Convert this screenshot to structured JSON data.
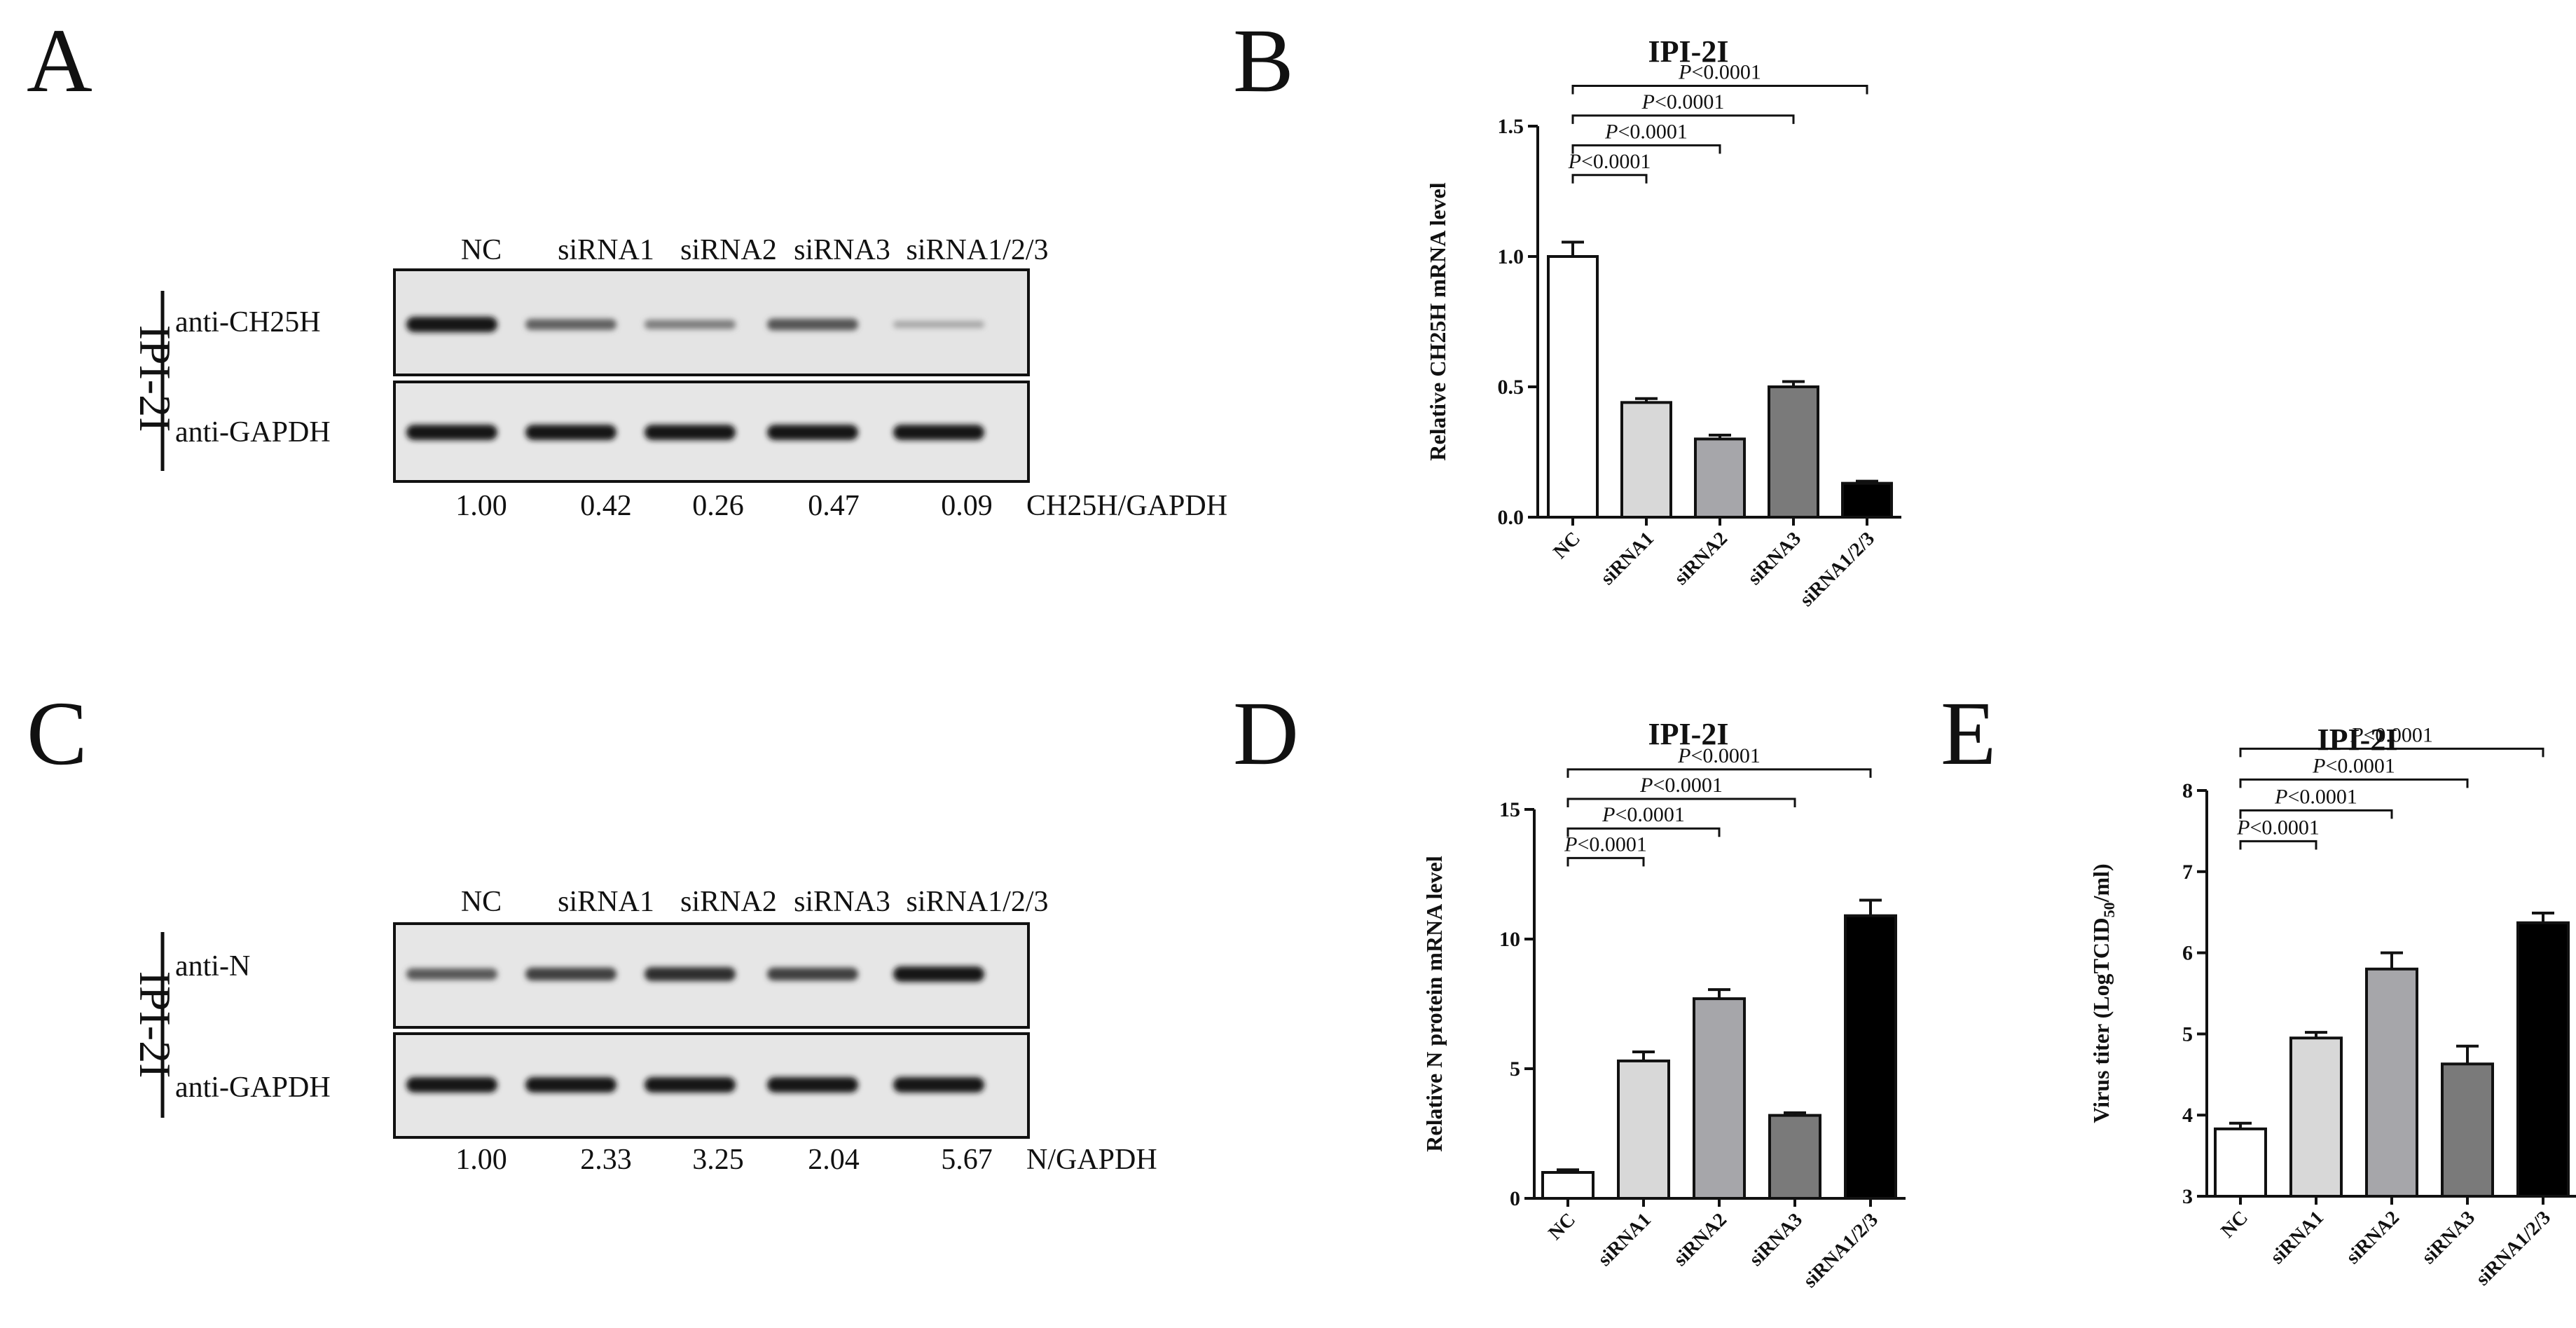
{
  "panel_letters": {
    "A": "A",
    "B": "B",
    "C": "C",
    "D": "D",
    "E": "E"
  },
  "blots": [
    {
      "letter": "A",
      "cell_line": "IPI-2I",
      "lanes": [
        "NC",
        "siRNA1",
        "siRNA2",
        "siRNA3",
        "siRNA1/2/3"
      ],
      "rows": [
        {
          "label": "anti-CH25H",
          "intensities": [
            1.0,
            0.55,
            0.38,
            0.62,
            0.15
          ]
        },
        {
          "label": "anti-GAPDH",
          "intensities": [
            1.0,
            1.0,
            1.0,
            1.0,
            1.0
          ]
        }
      ],
      "ratios": [
        "1.00",
        "0.42",
        "0.26",
        "0.47",
        "0.09"
      ],
      "ratio_label": "CH25H/GAPDH"
    },
    {
      "letter": "C",
      "cell_line": "IPI-2I",
      "lanes": [
        "NC",
        "siRNA1",
        "siRNA2",
        "siRNA3",
        "siRNA1/2/3"
      ],
      "rows": [
        {
          "label": "anti-N",
          "intensities": [
            0.6,
            0.75,
            0.85,
            0.75,
            1.0
          ]
        },
        {
          "label": "anti-GAPDH",
          "intensities": [
            1.0,
            1.0,
            1.0,
            1.0,
            1.0
          ]
        }
      ],
      "ratios": [
        "1.00",
        "2.33",
        "3.25",
        "2.04",
        "5.67"
      ],
      "ratio_label": "N/GAPDH"
    }
  ],
  "chart_data": [
    {
      "letter": "B",
      "type": "bar",
      "title": "IPI-2I",
      "ylabel": "Relative CH25H mRNA level",
      "categories": [
        "NC",
        "siRNA1",
        "siRNA2",
        "siRNA3",
        "siRNA1/2/3"
      ],
      "values": [
        1.0,
        0.44,
        0.3,
        0.5,
        0.13
      ],
      "errors": [
        0.055,
        0.015,
        0.015,
        0.02,
        0.008
      ],
      "ylim": [
        0,
        1.5
      ],
      "yticks": [
        "0.0",
        "0.5",
        "1.0",
        "1.5"
      ],
      "ytick_values": [
        0,
        0.5,
        1.0,
        1.5
      ],
      "colors": [
        "#ffffff",
        "#d8d8d8",
        "#a6a6aa",
        "#7a7a7a",
        "#000000"
      ],
      "significance": [
        {
          "from": 0,
          "to": 1,
          "p_label": "P",
          "p_value": "<0.0001"
        },
        {
          "from": 0,
          "to": 2,
          "p_label": "P",
          "p_value": "<0.0001"
        },
        {
          "from": 0,
          "to": 3,
          "p_label": "P",
          "p_value": "<0.0001"
        },
        {
          "from": 0,
          "to": 4,
          "p_label": "P",
          "p_value": "<0.0001"
        }
      ]
    },
    {
      "letter": "D",
      "type": "bar",
      "title": "IPI-2I",
      "ylabel": "Relative N protein mRNA level",
      "categories": [
        "NC",
        "siRNA1",
        "siRNA2",
        "siRNA3",
        "siRNA1/2/3"
      ],
      "values": [
        1.0,
        5.3,
        7.7,
        3.2,
        10.9
      ],
      "errors": [
        0.1,
        0.35,
        0.35,
        0.1,
        0.6
      ],
      "ylim": [
        0,
        15
      ],
      "yticks": [
        "0",
        "5",
        "10",
        "15"
      ],
      "ytick_values": [
        0,
        5,
        10,
        15
      ],
      "colors": [
        "#ffffff",
        "#d8d8d8",
        "#a6a6aa",
        "#7a7a7a",
        "#000000"
      ],
      "significance": [
        {
          "from": 0,
          "to": 1,
          "p_label": "P",
          "p_value": "<0.0001"
        },
        {
          "from": 0,
          "to": 2,
          "p_label": "P",
          "p_value": "<0.0001"
        },
        {
          "from": 0,
          "to": 3,
          "p_label": "P",
          "p_value": "<0.0001"
        },
        {
          "from": 0,
          "to": 4,
          "p_label": "P",
          "p_value": "<0.0001"
        }
      ]
    },
    {
      "letter": "E",
      "type": "bar",
      "title": "IPI-2I",
      "ylabel": "Virus titer (LogTCID",
      "ylabel_sub": "50",
      "ylabel_end": "/ml)",
      "categories": [
        "NC",
        "siRNA1",
        "siRNA2",
        "siRNA3",
        "siRNA1/2/3"
      ],
      "values": [
        3.83,
        4.95,
        5.8,
        4.63,
        6.37
      ],
      "errors": [
        0.07,
        0.07,
        0.2,
        0.22,
        0.12
      ],
      "ylim": [
        3,
        8
      ],
      "yticks": [
        "3",
        "4",
        "5",
        "6",
        "7",
        "8"
      ],
      "ytick_values": [
        3,
        4,
        5,
        6,
        7,
        8
      ],
      "colors": [
        "#ffffff",
        "#d8d8d8",
        "#a6a6aa",
        "#7a7a7a",
        "#000000"
      ],
      "significance": [
        {
          "from": 0,
          "to": 1,
          "p_label": "P",
          "p_value": "<0.0001"
        },
        {
          "from": 0,
          "to": 2,
          "p_label": "P",
          "p_value": "<0.0001"
        },
        {
          "from": 0,
          "to": 3,
          "p_label": "P",
          "p_value": "<0.0001"
        },
        {
          "from": 0,
          "to": 4,
          "p_label": "P",
          "p_value": "<0.0001"
        }
      ]
    }
  ]
}
